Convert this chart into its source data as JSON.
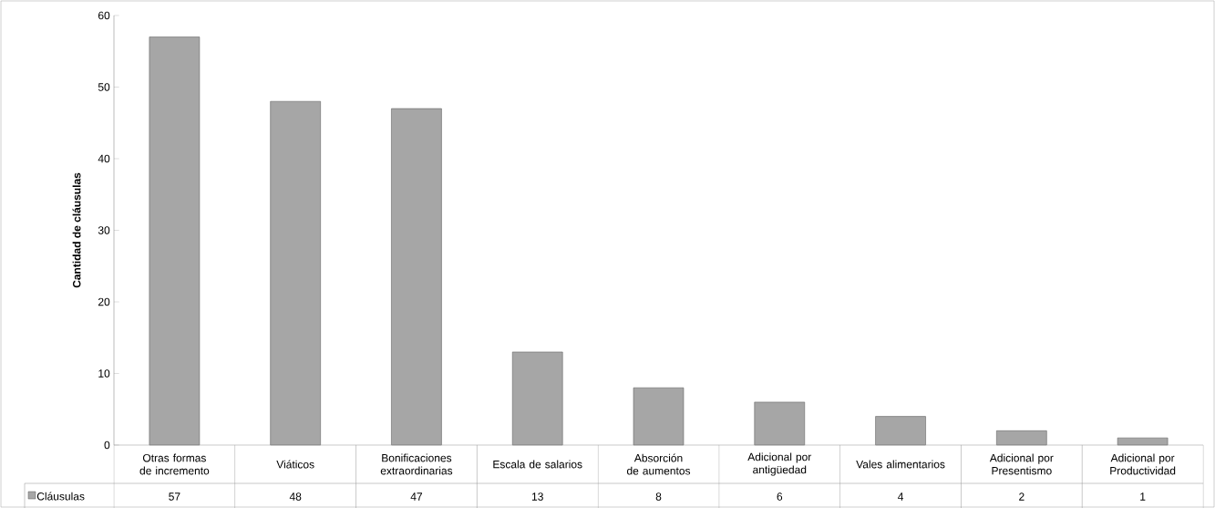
{
  "chart_data": {
    "type": "bar",
    "ylabel": "Cantidad de cláusulas",
    "categories": [
      "Otras formas de incremento",
      "Viáticos",
      "Bonificaciones extraordinarias",
      "Escala de salarios",
      "Absorción de aumentos",
      "Adicional por antigüedad",
      "Vales alimentarios",
      "Adicional por Presentismo",
      "Adicional por Productividad"
    ],
    "series": [
      {
        "name": "Cláusulas",
        "color": "#a6a6a6",
        "values": [
          57,
          48,
          47,
          13,
          8,
          6,
          4,
          2,
          1
        ]
      }
    ],
    "ylim": [
      0,
      60
    ],
    "yticks": [
      0,
      10,
      20,
      30,
      40,
      50,
      60
    ],
    "data_labels": true,
    "legend": "bottom",
    "grid": false
  }
}
